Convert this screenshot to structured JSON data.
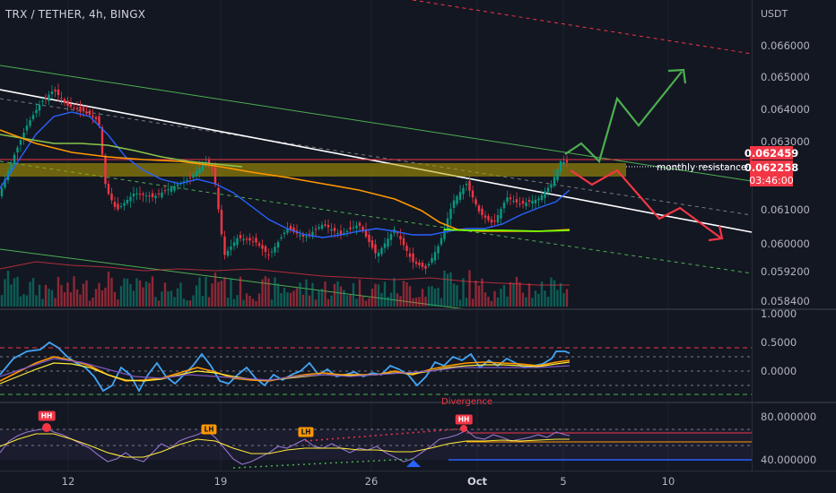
{
  "header": {
    "title": "TRX / TETHER, 4h, BINGX"
  },
  "price_axis": {
    "unit": "USDT",
    "ticks": [
      "0.066000",
      "0.065000",
      "0.064000",
      "0.063000",
      "0.061000",
      "0.060000",
      "0.059200",
      "0.058400"
    ],
    "last_price_tag": "0.062459",
    "current_price_tag": "0.062258",
    "countdown_tag": "03:46:00"
  },
  "annotations": {
    "resistance_label": "monthly resistance",
    "divergence_label": "Divergence",
    "markers": [
      "HH",
      "LH",
      "LH",
      "HH"
    ]
  },
  "oscillator_1": {
    "ticks": [
      "1.0000",
      "0.5000",
      "0.0000"
    ]
  },
  "oscillator_2": {
    "ticks": [
      "80.000000",
      "40.000000"
    ]
  },
  "time_axis": {
    "ticks": [
      "12",
      "19",
      "26",
      "Oct",
      "5",
      "10"
    ]
  },
  "colors": {
    "background": "#131722",
    "bull_candle": "#089981",
    "bear_candle": "#f23645",
    "resistance_zone": "#b8a100",
    "bull_projection": "#4caf50",
    "bear_projection": "#f23645"
  }
}
